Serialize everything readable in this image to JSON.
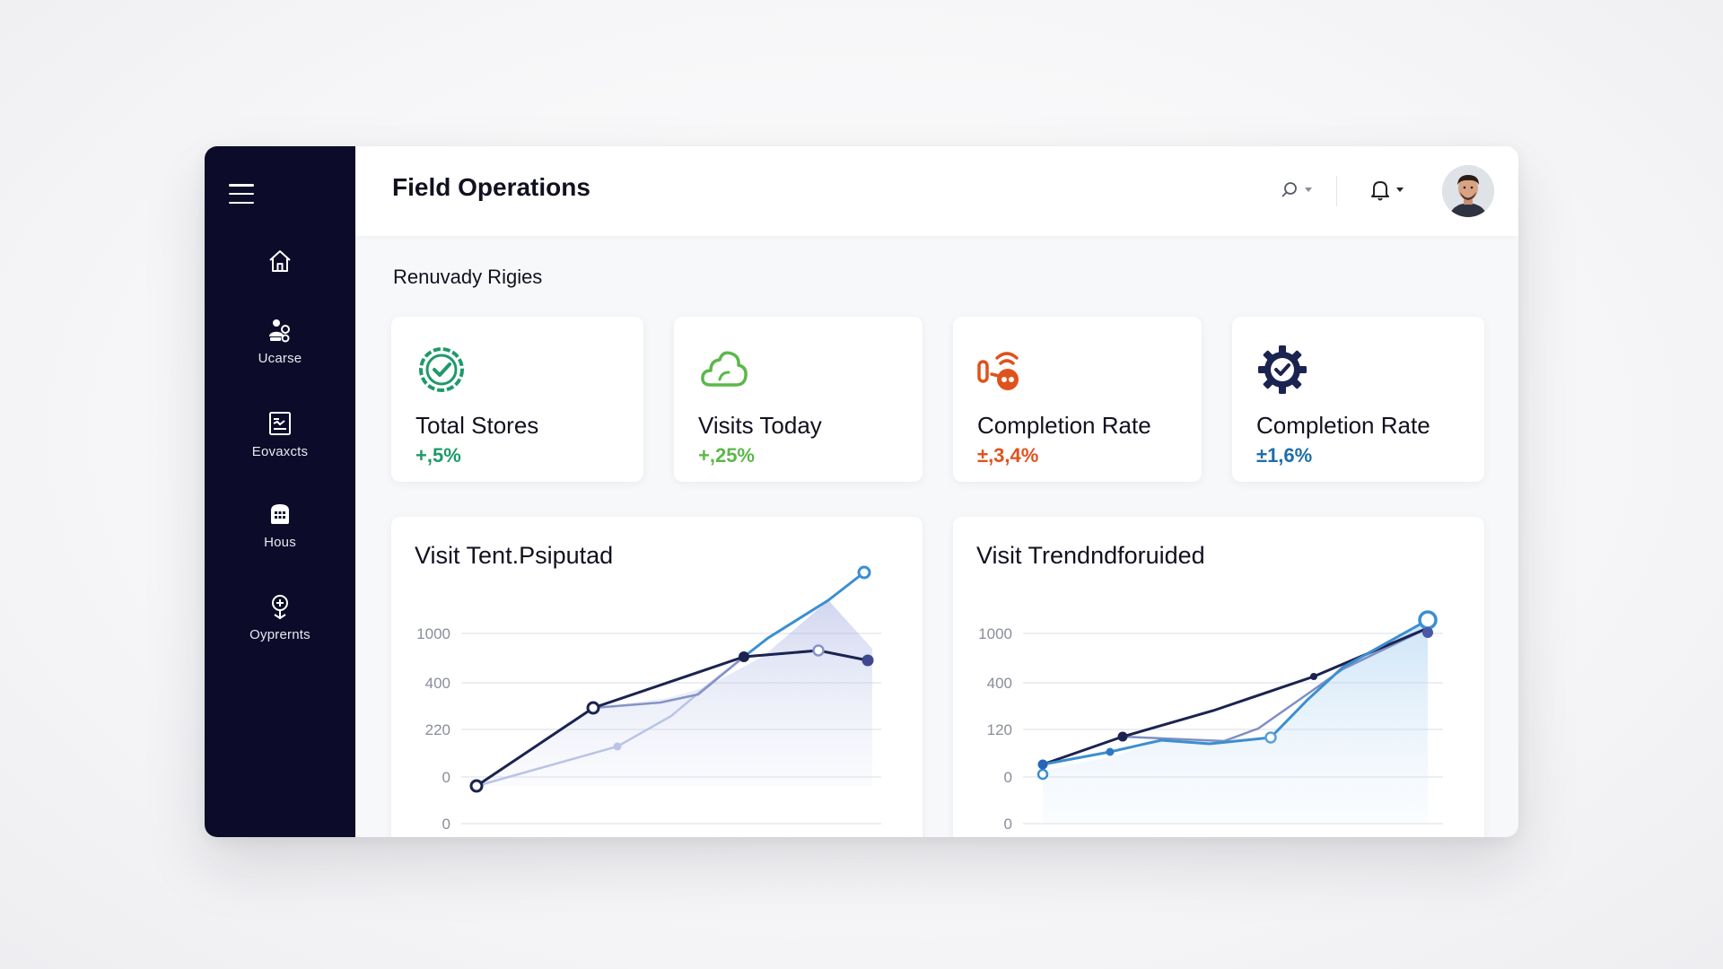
{
  "app": {
    "title": "Field Operations"
  },
  "sidebar": {
    "items": [
      {
        "label": "",
        "icon": "home-icon"
      },
      {
        "label": "Ucarse",
        "icon": "users-icon"
      },
      {
        "label": "Eovaxcts",
        "icon": "reports-icon"
      },
      {
        "label": "Hous",
        "icon": "store-icon"
      },
      {
        "label": "Oyprernts",
        "icon": "location-icon"
      }
    ]
  },
  "header": {
    "search_icon": "search-icon",
    "bell_icon": "bell-icon",
    "avatar": "user-avatar"
  },
  "section": {
    "title": "Renuvady Rigies"
  },
  "stats": [
    {
      "title": "Total Stores",
      "change": "+,5%",
      "color": "#1e9a6a",
      "icon": "check-badge-icon"
    },
    {
      "title": "Visits Today",
      "change": "+,25%",
      "color": "#5bb84a",
      "icon": "cloud-icon"
    },
    {
      "title": "Completion Rate",
      "change": "±,3,4%",
      "color": "#e0521c",
      "icon": "signal-icon"
    },
    {
      "title": "Completion Rate",
      "change": "±1,6%",
      "color": "#1f6ea8",
      "icon": "gear-check-icon"
    }
  ],
  "colors": {
    "sidebar": "#0c0c2a",
    "accent_dark": "#1b2350",
    "accent_blue": "#3b8fd0",
    "accent_mid": "#7f8fc4"
  },
  "chart_data": [
    {
      "type": "line",
      "title": "Visit Tent.Psiputad",
      "y_tick_labels": [
        "1000",
        "400",
        "220",
        "0",
        "0"
      ],
      "series": [
        {
          "values": [
            {
              "x": 0,
              "y": "0"
            },
            {
              "x": 1,
              "y": "~280"
            },
            {
              "x": 2,
              "y": "~300"
            },
            {
              "x": 3,
              "y": "~550"
            },
            {
              "x": 4,
              "y": "~480"
            }
          ]
        },
        {
          "values": [
            {
              "x": 0,
              "y": "0"
            },
            {
              "x": 1.5,
              "y": "~120"
            },
            {
              "x": 2.5,
              "y": "~280"
            },
            {
              "x": 4,
              "y": "~1050"
            }
          ]
        },
        {
          "values": [
            {
              "x": 1,
              "y": "~280"
            },
            {
              "x": 2,
              "y": "~320"
            },
            {
              "x": 2.5,
              "y": "~420"
            },
            {
              "x": 3,
              "y": "~600"
            },
            {
              "x": 4,
              "y": "~500"
            }
          ]
        }
      ]
    },
    {
      "type": "line",
      "title": "Visit Trendndforuided",
      "y_tick_labels": [
        "1000",
        "400",
        "120",
        "0",
        "0"
      ],
      "series": [
        {
          "values": [
            {
              "x": 0,
              "y": "~20"
            },
            {
              "x": 1,
              "y": "~120"
            },
            {
              "x": 2.5,
              "y": "~500"
            },
            {
              "x": 4,
              "y": "~950"
            }
          ]
        },
        {
          "values": [
            {
              "x": 0,
              "y": "0"
            },
            {
              "x": 1,
              "y": "~90"
            },
            {
              "x": 2,
              "y": "~100"
            },
            {
              "x": 3,
              "y": "~600"
            },
            {
              "x": 4,
              "y": "~1100"
            }
          ]
        },
        {
          "values": [
            {
              "x": 0,
              "y": "~20"
            },
            {
              "x": 1,
              "y": "~120"
            },
            {
              "x": 2.5,
              "y": "~460"
            },
            {
              "x": 3.5,
              "y": "~700"
            },
            {
              "x": 4,
              "y": "~950"
            }
          ]
        }
      ]
    }
  ]
}
